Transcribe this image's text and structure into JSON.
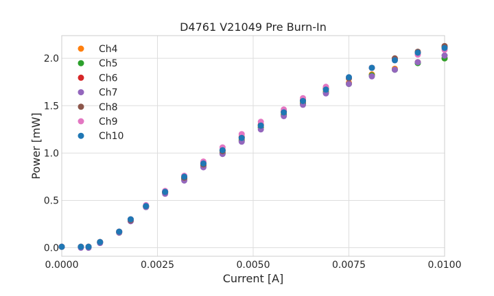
{
  "chart_data": {
    "type": "scatter",
    "title": "D4761 V21049 Pre Burn-In",
    "xlabel": "Current [A]",
    "ylabel": "Power [mW]",
    "xlim": [
      0.0,
      0.01
    ],
    "ylim": [
      -0.09,
      2.24
    ],
    "x_ticks": [
      "0.0000",
      "0.0025",
      "0.0050",
      "0.0075",
      "0.0100"
    ],
    "y_ticks": [
      "0.0",
      "0.5",
      "1.0",
      "1.5",
      "2.0"
    ],
    "x_tick_values": [
      0.0,
      0.0025,
      0.005,
      0.0075,
      0.01
    ],
    "y_tick_values": [
      0.0,
      0.5,
      1.0,
      1.5,
      2.0
    ],
    "grid": true,
    "legend_position": "top-left",
    "series": [
      {
        "name": "Ch4",
        "color": "#ff7f0e",
        "x": [
          0.0,
          0.0005,
          0.0007,
          0.001,
          0.0015,
          0.0018,
          0.0022,
          0.0027,
          0.0032,
          0.0037,
          0.0042,
          0.0047,
          0.0052,
          0.0058,
          0.0063,
          0.0069,
          0.0075,
          0.0081,
          0.0087,
          0.0093,
          0.01
        ],
        "y": [
          0.01,
          0.01,
          0.01,
          0.06,
          0.16,
          0.29,
          0.44,
          0.58,
          0.73,
          0.87,
          1.0,
          1.14,
          1.27,
          1.41,
          1.53,
          1.65,
          1.74,
          1.83,
          1.89,
          1.96,
          2.0
        ]
      },
      {
        "name": "Ch5",
        "color": "#2ca02c",
        "x": [
          0.0,
          0.0005,
          0.0007,
          0.001,
          0.0015,
          0.0018,
          0.0022,
          0.0027,
          0.0032,
          0.0037,
          0.0042,
          0.0047,
          0.0052,
          0.0058,
          0.0063,
          0.0069,
          0.0075,
          0.0081,
          0.0087,
          0.0093,
          0.01
        ],
        "y": [
          0.01,
          0.01,
          0.01,
          0.06,
          0.16,
          0.29,
          0.43,
          0.58,
          0.72,
          0.86,
          1.0,
          1.13,
          1.27,
          1.4,
          1.52,
          1.64,
          1.73,
          1.82,
          1.88,
          1.95,
          2.0
        ]
      },
      {
        "name": "Ch6",
        "color": "#d62728",
        "x": [
          0.0,
          0.0005,
          0.0007,
          0.001,
          0.0015,
          0.0018,
          0.0022,
          0.0027,
          0.0032,
          0.0037,
          0.0042,
          0.0047,
          0.0052,
          0.0058,
          0.0063,
          0.0069,
          0.0075,
          0.0081,
          0.0087,
          0.0093,
          0.01
        ],
        "y": [
          0.01,
          0.01,
          0.01,
          0.06,
          0.17,
          0.3,
          0.44,
          0.59,
          0.74,
          0.89,
          1.03,
          1.17,
          1.3,
          1.44,
          1.56,
          1.68,
          1.79,
          1.9,
          1.99,
          2.06,
          2.12
        ]
      },
      {
        "name": "Ch7",
        "color": "#9467bd",
        "x": [
          0.0,
          0.0005,
          0.0007,
          0.001,
          0.0015,
          0.0018,
          0.0022,
          0.0027,
          0.0032,
          0.0037,
          0.0042,
          0.0047,
          0.0052,
          0.0058,
          0.0063,
          0.0069,
          0.0075,
          0.0081,
          0.0087,
          0.0093,
          0.01
        ],
        "y": [
          0.01,
          0.0,
          0.0,
          0.05,
          0.16,
          0.28,
          0.43,
          0.57,
          0.71,
          0.85,
          0.99,
          1.12,
          1.25,
          1.39,
          1.51,
          1.63,
          1.73,
          1.81,
          1.88,
          1.96,
          2.03
        ]
      },
      {
        "name": "Ch8",
        "color": "#8c564b",
        "x": [
          0.0,
          0.0005,
          0.0007,
          0.001,
          0.0015,
          0.0018,
          0.0022,
          0.0027,
          0.0032,
          0.0037,
          0.0042,
          0.0047,
          0.0052,
          0.0058,
          0.0063,
          0.0069,
          0.0075,
          0.0081,
          0.0087,
          0.0093,
          0.01
        ],
        "y": [
          0.01,
          0.01,
          0.01,
          0.06,
          0.17,
          0.29,
          0.44,
          0.59,
          0.74,
          0.88,
          1.02,
          1.16,
          1.29,
          1.43,
          1.55,
          1.68,
          1.79,
          1.9,
          2.0,
          2.07,
          2.13
        ]
      },
      {
        "name": "Ch9",
        "color": "#e377c2",
        "x": [
          0.0,
          0.0005,
          0.0007,
          0.001,
          0.0015,
          0.0018,
          0.0022,
          0.0027,
          0.0032,
          0.0037,
          0.0042,
          0.0047,
          0.0052,
          0.0058,
          0.0063,
          0.0069,
          0.0075,
          0.0081,
          0.0087,
          0.0093,
          0.01
        ],
        "y": [
          0.01,
          0.01,
          0.01,
          0.06,
          0.17,
          0.3,
          0.45,
          0.6,
          0.76,
          0.91,
          1.06,
          1.2,
          1.33,
          1.46,
          1.58,
          1.7,
          1.8,
          1.9,
          1.98,
          2.04,
          2.09
        ]
      },
      {
        "name": "Ch10",
        "color": "#1f77b4",
        "x": [
          0.0,
          0.0005,
          0.0007,
          0.001,
          0.0015,
          0.0018,
          0.0022,
          0.0027,
          0.0032,
          0.0037,
          0.0042,
          0.0047,
          0.0052,
          0.0058,
          0.0063,
          0.0069,
          0.0075,
          0.0081,
          0.0087,
          0.0093,
          0.01
        ],
        "y": [
          0.01,
          0.01,
          0.01,
          0.06,
          0.17,
          0.3,
          0.44,
          0.59,
          0.75,
          0.89,
          1.03,
          1.16,
          1.29,
          1.43,
          1.55,
          1.67,
          1.8,
          1.9,
          1.98,
          2.06,
          2.11
        ]
      }
    ]
  }
}
